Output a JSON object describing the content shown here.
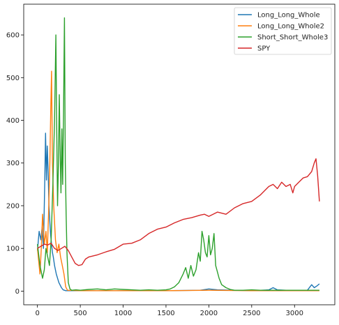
{
  "chart_data": {
    "type": "line",
    "title": "",
    "xlabel": "",
    "ylabel": "",
    "xlim": [
      -160,
      3470
    ],
    "ylim": [
      -32,
      672
    ],
    "xticks": [
      0,
      500,
      1000,
      1500,
      2000,
      2500,
      3000
    ],
    "yticks": [
      0,
      100,
      200,
      300,
      400,
      500,
      600
    ],
    "xtick_labels": [
      "0",
      "500",
      "1000",
      "1500",
      "2000",
      "2500",
      "3000"
    ],
    "ytick_labels": [
      "0",
      "100",
      "200",
      "300",
      "400",
      "500",
      "600"
    ],
    "grid": false,
    "legend_position": "top-right",
    "series": [
      {
        "name": "Long_Long_Whole",
        "color": "#1f77b4",
        "x": [
          0,
          20,
          40,
          55,
          70,
          85,
          95,
          105,
          115,
          125,
          135,
          145,
          155,
          165,
          175,
          185,
          200,
          220,
          250,
          280,
          300,
          330,
          400,
          600,
          1000,
          1500,
          1900,
          2000,
          2100,
          2500,
          2700,
          2750,
          2800,
          3000,
          3150,
          3200,
          3230,
          3260,
          3290
        ],
        "values": [
          95,
          140,
          120,
          150,
          100,
          250,
          370,
          260,
          340,
          280,
          200,
          160,
          130,
          110,
          90,
          80,
          60,
          40,
          20,
          8,
          3,
          1,
          1,
          1,
          1,
          1,
          2,
          5,
          3,
          1,
          3,
          8,
          3,
          1,
          2,
          15,
          8,
          12,
          17
        ]
      },
      {
        "name": "Long_Long_Whole2",
        "color": "#ff7f0e",
        "x": [
          0,
          15,
          30,
          45,
          60,
          80,
          100,
          115,
          130,
          145,
          155,
          165,
          175,
          190,
          210,
          230,
          250,
          270,
          290,
          310,
          330,
          350,
          500,
          1000,
          1500,
          2000,
          2500,
          3000,
          3290
        ],
        "values": [
          100,
          70,
          40,
          100,
          180,
          110,
          140,
          90,
          180,
          300,
          420,
          515,
          300,
          200,
          120,
          90,
          110,
          80,
          60,
          40,
          10,
          2,
          1,
          1,
          1,
          2,
          1,
          1,
          1
        ]
      },
      {
        "name": "Short_Short_Whole3",
        "color": "#2ca02c",
        "x": [
          0,
          30,
          60,
          80,
          100,
          120,
          140,
          160,
          180,
          200,
          215,
          225,
          235,
          245,
          255,
          265,
          275,
          285,
          295,
          305,
          315,
          325,
          335,
          345,
          360,
          380,
          400,
          450,
          500,
          600,
          700,
          800,
          900,
          1000,
          1100,
          1200,
          1300,
          1400,
          1500,
          1550,
          1600,
          1650,
          1700,
          1730,
          1760,
          1790,
          1820,
          1850,
          1880,
          1900,
          1920,
          1940,
          1960,
          1980,
          2000,
          2020,
          2040,
          2060,
          2080,
          2100,
          2120,
          2150,
          2200,
          2250,
          2300,
          2400,
          2500,
          2600,
          2700,
          2800,
          2900,
          3000,
          3100,
          3200,
          3290
        ],
        "values": [
          110,
          60,
          30,
          50,
          100,
          80,
          60,
          120,
          250,
          400,
          600,
          380,
          200,
          300,
          460,
          330,
          230,
          380,
          250,
          420,
          640,
          300,
          180,
          90,
          20,
          5,
          2,
          3,
          2,
          4,
          5,
          3,
          5,
          4,
          3,
          2,
          3,
          2,
          3,
          5,
          10,
          20,
          40,
          55,
          30,
          60,
          35,
          50,
          90,
          70,
          140,
          120,
          90,
          80,
          130,
          85,
          100,
          135,
          60,
          45,
          30,
          15,
          8,
          4,
          2,
          2,
          3,
          2,
          2,
          2,
          2,
          2,
          2,
          2,
          2
        ]
      },
      {
        "name": "SPY",
        "color": "#d62728",
        "x": [
          0,
          40,
          80,
          120,
          160,
          200,
          240,
          280,
          320,
          360,
          400,
          440,
          480,
          520,
          560,
          600,
          700,
          800,
          900,
          1000,
          1100,
          1200,
          1300,
          1400,
          1500,
          1600,
          1700,
          1800,
          1900,
          1950,
          2000,
          2100,
          2200,
          2300,
          2400,
          2500,
          2600,
          2700,
          2750,
          2800,
          2850,
          2900,
          2950,
          2980,
          3000,
          3050,
          3100,
          3150,
          3200,
          3230,
          3250,
          3270,
          3290
        ],
        "values": [
          100,
          105,
          110,
          108,
          112,
          100,
          95,
          100,
          105,
          95,
          80,
          65,
          60,
          62,
          75,
          80,
          85,
          92,
          98,
          110,
          112,
          120,
          135,
          145,
          150,
          160,
          168,
          172,
          178,
          180,
          175,
          185,
          180,
          195,
          205,
          210,
          225,
          245,
          250,
          240,
          255,
          245,
          250,
          230,
          245,
          255,
          265,
          268,
          280,
          300,
          310,
          270,
          210
        ]
      }
    ]
  }
}
